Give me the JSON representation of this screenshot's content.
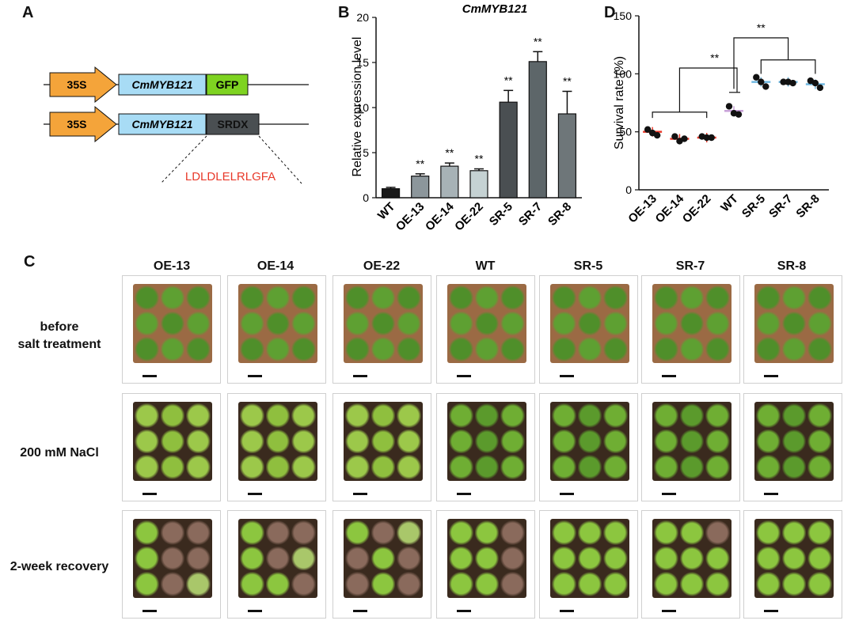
{
  "panels": {
    "a": "A",
    "b": "B",
    "c": "C",
    "d": "D"
  },
  "panel_a": {
    "construct1": {
      "promoter": "35S",
      "gene": "CmMYB121",
      "tag": "GFP"
    },
    "construct2": {
      "promoter": "35S",
      "gene": "CmMYB121",
      "tag": "SRDX"
    },
    "motif": "LDLDLELRLGFA",
    "colors": {
      "promoter": "#f4a43a",
      "gene": "#a8dcf5",
      "gfp": "#7ed321",
      "srdx": "#4a4f52",
      "motif": "#e8392a"
    }
  },
  "panel_b": {
    "title": "CmMYB121",
    "ylabel": "Relative expression level",
    "sig": "**"
  },
  "panel_d": {
    "ylabel": "Survival rate (%)",
    "sig": "**"
  },
  "panel_c": {
    "columns": [
      "OE-13",
      "OE-14",
      "OE-22",
      "WT",
      "SR-5",
      "SR-7",
      "SR-8"
    ],
    "rows": [
      {
        "label_l1": "before",
        "label_l2": "salt treatment"
      },
      {
        "label_l1": "200 mM NaCl",
        "label_l2": ""
      },
      {
        "label_l1": "2-week recovery",
        "label_l2": ""
      }
    ]
  },
  "chart_data": [
    {
      "type": "bar",
      "title": "CmMYB121",
      "ylabel": "Relative expression level",
      "xlabel": "",
      "categories": [
        "WT",
        "OE-13",
        "OE-14",
        "OE-22",
        "SR-5",
        "SR-7",
        "SR-8"
      ],
      "values": [
        1.0,
        2.4,
        3.5,
        3.0,
        10.6,
        15.1,
        9.3
      ],
      "errors": [
        0.15,
        0.25,
        0.35,
        0.2,
        1.3,
        1.1,
        2.5
      ],
      "significance": [
        "",
        "**",
        "**",
        "**",
        "**",
        "**",
        "**"
      ],
      "colors": [
        "#1a1a1a",
        "#8c969b",
        "#a7b2b6",
        "#c5d2d3",
        "#4a4f52",
        "#5d6669",
        "#6e7679"
      ],
      "ylim": [
        0,
        20
      ],
      "yticks": [
        0,
        5,
        10,
        15,
        20
      ]
    },
    {
      "type": "scatter",
      "ylabel": "Survival rate (%)",
      "xlabel": "",
      "categories": [
        "OE-13",
        "OE-14",
        "OE-22",
        "WT",
        "SR-5",
        "SR-7",
        "SR-8"
      ],
      "points": [
        [
          52,
          49,
          47
        ],
        [
          46,
          42,
          44
        ],
        [
          46,
          45,
          45
        ],
        [
          72,
          66,
          65
        ],
        [
          97,
          93,
          89
        ],
        [
          93,
          93,
          92
        ],
        [
          94,
          92,
          88
        ]
      ],
      "means": [
        50,
        44,
        45,
        68,
        93,
        93,
        91
      ],
      "mean_colors": [
        "#e8392a",
        "#e8392a",
        "#e8392a",
        "#c8a2d8",
        "#6fb7e0",
        "#6fb7e0",
        "#6fb7e0"
      ],
      "ylim": [
        0,
        150
      ],
      "yticks": [
        0,
        50,
        100,
        150
      ]
    }
  ]
}
